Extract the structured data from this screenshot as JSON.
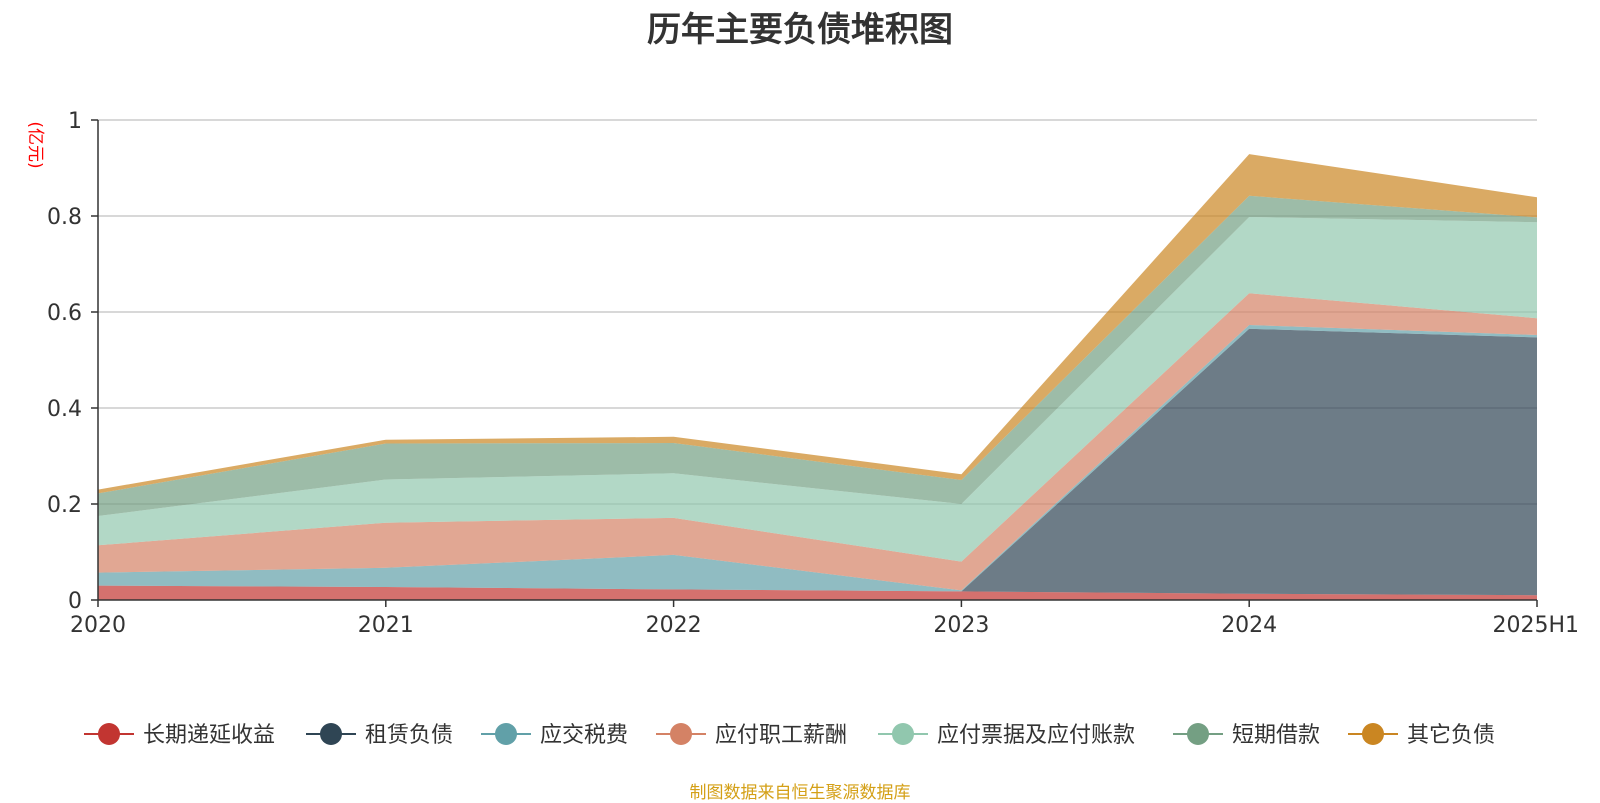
{
  "chart_data": {
    "type": "area",
    "title": "历年主要负债堆积图",
    "ylabel": "(亿元)",
    "xlabel": "",
    "categories": [
      "2020",
      "2021",
      "2022",
      "2023",
      "2024",
      "2025H1"
    ],
    "ylim": [
      0,
      1
    ],
    "yticks": [
      "0",
      "0.2",
      "0.4",
      "0.6",
      "0.8",
      "1"
    ],
    "ytick_values": [
      0,
      0.2,
      0.4,
      0.6,
      0.8,
      1
    ],
    "stacked": true,
    "grid": true,
    "legend_position": "bottom",
    "series": [
      {
        "name": "长期递延收益",
        "color": "#c23531",
        "values": [
          0.03,
          0.027,
          0.022,
          0.018,
          0.013,
          0.01
        ]
      },
      {
        "name": "租赁负债",
        "color": "#2f4554",
        "values": [
          0.0,
          0.0,
          0.0,
          0.0,
          0.552,
          0.537
        ]
      },
      {
        "name": "应交税费",
        "color": "#61a0a8",
        "values": [
          0.027,
          0.04,
          0.072,
          0.002,
          0.008,
          0.005
        ]
      },
      {
        "name": "应付职工薪酬",
        "color": "#d48265",
        "values": [
          0.057,
          0.094,
          0.077,
          0.06,
          0.066,
          0.035
        ]
      },
      {
        "name": "应付票据及应付账款",
        "color": "#91c7ae",
        "values": [
          0.061,
          0.09,
          0.093,
          0.12,
          0.159,
          0.2
        ]
      },
      {
        "name": "短期借款",
        "color": "#749f83",
        "values": [
          0.047,
          0.075,
          0.063,
          0.05,
          0.044,
          0.01
        ]
      },
      {
        "name": "其它负债",
        "color": "#ca8622",
        "values": [
          0.008,
          0.008,
          0.013,
          0.012,
          0.087,
          0.042
        ]
      }
    ]
  },
  "source_note": "制图数据来自恒生聚源数据库"
}
